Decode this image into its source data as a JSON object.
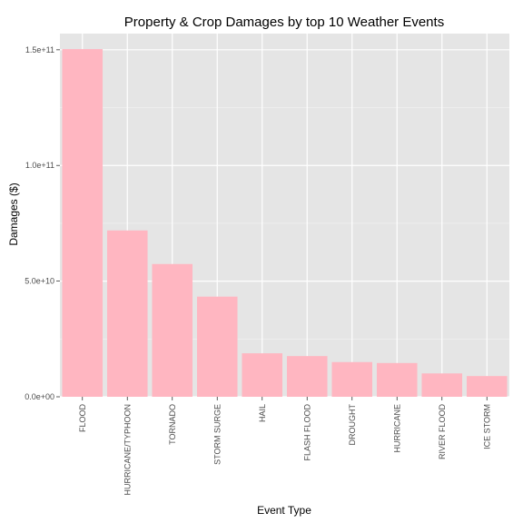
{
  "chart_data": {
    "type": "bar",
    "title": "Property & Crop Damages by top 10 Weather Events",
    "xlabel": "Event Type",
    "ylabel": "Damages ($)",
    "categories": [
      "FLOOD",
      "HURRICANE/TYPHOON",
      "TORNADO",
      "STORM SURGE",
      "HAIL",
      "FLASH FLOOD",
      "DROUGHT",
      "HURRICANE",
      "RIVER FLOOD",
      "ICE STORM"
    ],
    "values": [
      150300000000,
      71900000000,
      57400000000,
      43300000000,
      18800000000,
      17600000000,
      15000000000,
      14600000000,
      10100000000,
      8970000000
    ],
    "ylim": [
      0,
      157000000000
    ],
    "yticks": [
      0,
      50000000000,
      100000000000,
      150000000000
    ],
    "ytick_labels": [
      "0.0e+00",
      "5.0e+10",
      "1.0e+11",
      "1.5e+11"
    ],
    "grid": true,
    "colors": {
      "bar": "#ffb6c1",
      "panel": "#e5e5e5",
      "grid_major": "#ffffff",
      "grid_minor": "#f2f2f2"
    }
  }
}
